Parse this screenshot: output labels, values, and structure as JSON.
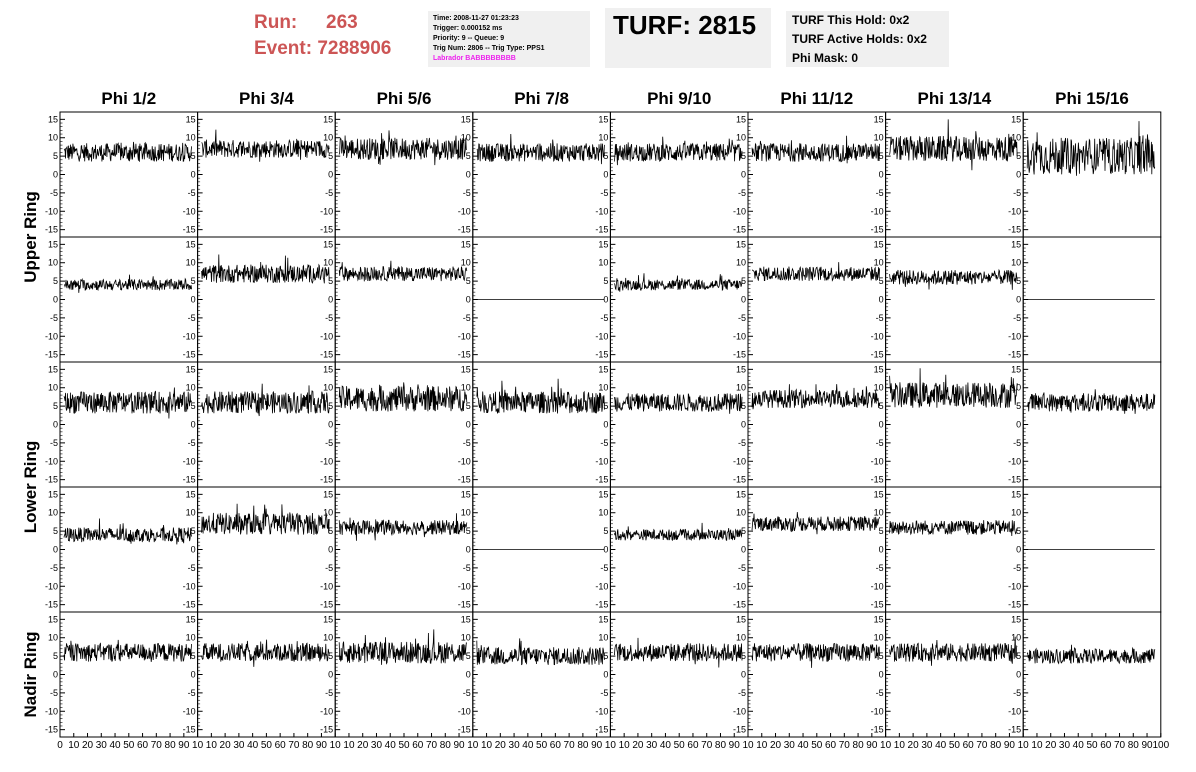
{
  "header": {
    "run_label": "Run:",
    "run_value": "263",
    "event_label": "Event:",
    "event_value": "7288906"
  },
  "info": {
    "time": "Time: 2008-11-27 01:23:23",
    "trigger": "Trigger: 0.000152 ms",
    "priority": "Priority: 9 -- Queue: 9",
    "trig_num": "Trig Num: 2806 -- Trig Type: PPS1",
    "labrador": "Labrador BABBBBBBBB"
  },
  "turf": {
    "label": "TURF: 2815",
    "this_hold": "TURF This Hold: 0x2",
    "active_holds": "TURF Active Holds: 0x2",
    "phi_mask": "Phi Mask: 0"
  },
  "colors": {
    "header_red": "#cc5555",
    "labrador_magenta": "#ee22ee",
    "box_bg": "#f0f0f0",
    "trace": "#000000"
  },
  "chart_data": {
    "type": "line",
    "columns": [
      "Phi 1/2",
      "Phi 3/4",
      "Phi 5/6",
      "Phi 7/8",
      "Phi 9/10",
      "Phi 11/12",
      "Phi 13/14",
      "Phi 15/16"
    ],
    "ring_labels": [
      "Upper Ring",
      "Lower Ring",
      "Nadir Ring"
    ],
    "rows_per_ring": [
      2,
      2,
      1
    ],
    "ylim": [
      -17,
      17
    ],
    "xlim": [
      0,
      100
    ],
    "yticks": [
      -15,
      -10,
      -5,
      0,
      5,
      10,
      15
    ],
    "xticks_first": [
      "0",
      "10",
      "20",
      "30",
      "40",
      "50",
      "60",
      "70",
      "80",
      "90",
      "10"
    ],
    "xticks_mid": [
      "10",
      "20",
      "30",
      "40",
      "50",
      "60",
      "70",
      "80",
      "90",
      "10"
    ],
    "xticks_last": [
      "10",
      "20",
      "30",
      "40",
      "50",
      "60",
      "70",
      "80",
      "90",
      "100"
    ],
    "traces": [
      [
        {
          "mean": 6,
          "amp": 2.5
        },
        {
          "mean": 7,
          "amp": 2.5
        },
        {
          "mean": 7,
          "amp": 3
        },
        {
          "mean": 6,
          "amp": 2.5
        },
        {
          "mean": 6,
          "amp": 2.5
        },
        {
          "mean": 6,
          "amp": 2.5
        },
        {
          "mean": 7,
          "amp": 3.5
        },
        {
          "mean": 5,
          "amp": 5
        }
      ],
      [
        {
          "mean": 4,
          "amp": 1.5
        },
        {
          "mean": 7,
          "amp": 2.5
        },
        {
          "mean": 7,
          "amp": 2
        },
        {
          "flat": 0
        },
        {
          "mean": 4,
          "amp": 1.5
        },
        {
          "mean": 7,
          "amp": 2
        },
        {
          "mean": 6,
          "amp": 2
        },
        {
          "flat": 0
        }
      ],
      [
        {
          "mean": 6,
          "amp": 3
        },
        {
          "mean": 6,
          "amp": 3
        },
        {
          "mean": 7,
          "amp": 3.5
        },
        {
          "mean": 6,
          "amp": 3
        },
        {
          "mean": 6,
          "amp": 2.5
        },
        {
          "mean": 7,
          "amp": 2.5
        },
        {
          "mean": 8,
          "amp": 3.5
        },
        {
          "mean": 6,
          "amp": 2.5
        }
      ],
      [
        {
          "mean": 4,
          "amp": 2
        },
        {
          "mean": 7,
          "amp": 3
        },
        {
          "mean": 6,
          "amp": 2
        },
        {
          "flat": 0
        },
        {
          "mean": 4,
          "amp": 1.5
        },
        {
          "mean": 7,
          "amp": 2
        },
        {
          "mean": 6,
          "amp": 2
        },
        {
          "flat": 0
        }
      ],
      [
        {
          "mean": 6,
          "amp": 2.5
        },
        {
          "mean": 6,
          "amp": 2.5
        },
        {
          "mean": 6,
          "amp": 3
        },
        {
          "mean": 5,
          "amp": 2.5
        },
        {
          "mean": 6,
          "amp": 2.5
        },
        {
          "mean": 6,
          "amp": 2.5
        },
        {
          "mean": 6,
          "amp": 2.5
        },
        {
          "mean": 5,
          "amp": 2
        }
      ]
    ]
  }
}
